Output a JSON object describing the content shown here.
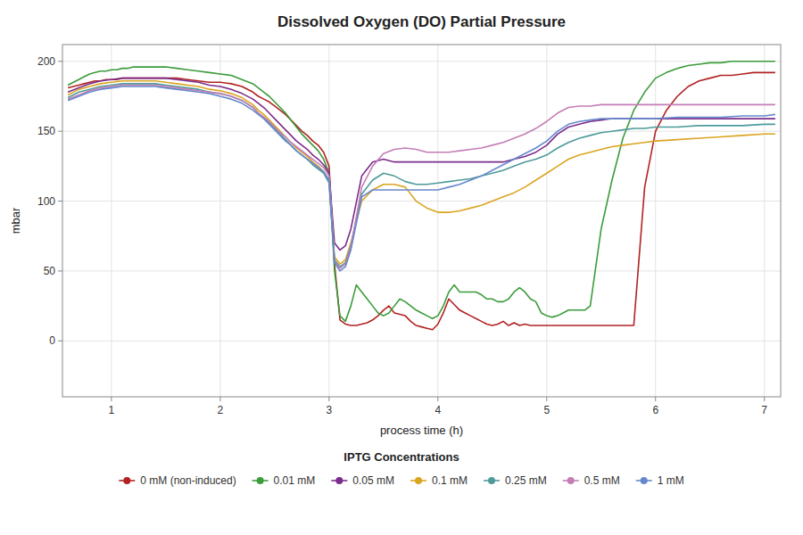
{
  "chart_data": {
    "type": "line",
    "title": "Dissolved Oxygen (DO) Partial Pressure",
    "x_label": "process time (h)",
    "y_label": "mbar",
    "legend_title": "IPTG Concentrations",
    "legend": "bottom",
    "grid": true,
    "xlim": [
      0.55,
      7.15
    ],
    "ylim": [
      -40,
      212
    ],
    "xticks": [
      1,
      2,
      3,
      4,
      5,
      6,
      7
    ],
    "yticks": [
      0,
      50,
      100,
      150,
      200
    ],
    "series": [
      {
        "name": "0 mM (non-induced)",
        "color": "#b22222",
        "x": [
          0.6,
          0.65,
          0.7,
          0.75,
          0.8,
          0.85,
          0.9,
          0.95,
          1.0,
          1.05,
          1.1,
          1.15,
          1.2,
          1.3,
          1.4,
          1.5,
          1.6,
          1.7,
          1.8,
          1.9,
          2.0,
          2.1,
          2.2,
          2.3,
          2.35,
          2.4,
          2.45,
          2.5,
          2.55,
          2.6,
          2.65,
          2.7,
          2.75,
          2.8,
          2.85,
          2.9,
          2.95,
          3.0,
          3.05,
          3.1,
          3.15,
          3.2,
          3.25,
          3.3,
          3.35,
          3.4,
          3.45,
          3.5,
          3.55,
          3.6,
          3.65,
          3.7,
          3.75,
          3.8,
          3.85,
          3.9,
          3.95,
          4.0,
          4.05,
          4.1,
          4.15,
          4.2,
          4.25,
          4.3,
          4.35,
          4.4,
          4.45,
          4.5,
          4.55,
          4.6,
          4.65,
          4.7,
          4.75,
          4.8,
          4.85,
          4.9,
          4.95,
          5.0,
          5.05,
          5.1,
          5.15,
          5.2,
          5.3,
          5.4,
          5.5,
          5.6,
          5.7,
          5.8,
          5.9,
          6.0,
          6.1,
          6.2,
          6.3,
          6.4,
          6.5,
          6.6,
          6.7,
          6.8,
          6.9,
          7.0,
          7.1
        ],
        "values": [
          181,
          182,
          183,
          184,
          185,
          186,
          186,
          187,
          187,
          187,
          188,
          188,
          188,
          188,
          188,
          188,
          188,
          187,
          186,
          185,
          185,
          184,
          182,
          178,
          175,
          173,
          171,
          168,
          165,
          162,
          158,
          154,
          150,
          147,
          143,
          140,
          135,
          125,
          55,
          15,
          12,
          11,
          11,
          12,
          13,
          15,
          18,
          22,
          25,
          20,
          19,
          18,
          14,
          11,
          10,
          9,
          8,
          12,
          20,
          30,
          26,
          22,
          20,
          18,
          16,
          14,
          12,
          11,
          12,
          14,
          11,
          13,
          11,
          12,
          11,
          11,
          11,
          11,
          11,
          11,
          11,
          11,
          11,
          11,
          11,
          11,
          11,
          11,
          110,
          150,
          165,
          175,
          182,
          186,
          188,
          190,
          190,
          191,
          192,
          192,
          192
        ]
      },
      {
        "name": "0.01 mM",
        "color": "#3a9c3a",
        "x": [
          0.6,
          0.65,
          0.7,
          0.75,
          0.8,
          0.85,
          0.9,
          0.95,
          1.0,
          1.05,
          1.1,
          1.15,
          1.2,
          1.3,
          1.4,
          1.5,
          1.6,
          1.7,
          1.8,
          1.9,
          2.0,
          2.1,
          2.2,
          2.3,
          2.35,
          2.4,
          2.45,
          2.5,
          2.55,
          2.6,
          2.65,
          2.7,
          2.75,
          2.8,
          2.85,
          2.9,
          2.95,
          3.0,
          3.05,
          3.1,
          3.15,
          3.2,
          3.25,
          3.3,
          3.35,
          3.4,
          3.45,
          3.5,
          3.55,
          3.6,
          3.65,
          3.7,
          3.75,
          3.8,
          3.85,
          3.9,
          3.95,
          4.0,
          4.05,
          4.1,
          4.15,
          4.2,
          4.25,
          4.3,
          4.35,
          4.4,
          4.45,
          4.5,
          4.55,
          4.6,
          4.65,
          4.7,
          4.75,
          4.8,
          4.85,
          4.9,
          4.95,
          5.0,
          5.05,
          5.1,
          5.15,
          5.2,
          5.25,
          5.3,
          5.35,
          5.4,
          5.5,
          5.6,
          5.7,
          5.8,
          5.9,
          6.0,
          6.1,
          6.2,
          6.3,
          6.4,
          6.5,
          6.6,
          6.7,
          6.8,
          6.9,
          7.0,
          7.1
        ],
        "values": [
          183,
          185,
          187,
          189,
          191,
          192,
          193,
          193,
          194,
          194,
          195,
          195,
          196,
          196,
          196,
          196,
          195,
          194,
          193,
          192,
          191,
          190,
          187,
          184,
          181,
          178,
          175,
          171,
          167,
          163,
          158,
          153,
          148,
          144,
          140,
          136,
          130,
          120,
          50,
          18,
          14,
          25,
          40,
          35,
          30,
          25,
          20,
          18,
          20,
          25,
          30,
          28,
          25,
          22,
          20,
          18,
          16,
          18,
          25,
          35,
          40,
          35,
          35,
          35,
          35,
          33,
          30,
          30,
          28,
          28,
          30,
          35,
          38,
          35,
          30,
          28,
          20,
          18,
          17,
          18,
          20,
          22,
          22,
          22,
          22,
          25,
          80,
          115,
          145,
          165,
          178,
          188,
          192,
          195,
          197,
          198,
          199,
          199,
          200,
          200,
          200,
          200,
          200
        ]
      },
      {
        "name": "0.05 mM",
        "color": "#7B2D8B",
        "x": [
          0.6,
          0.7,
          0.8,
          0.9,
          1.0,
          1.1,
          1.2,
          1.3,
          1.4,
          1.5,
          1.6,
          1.7,
          1.8,
          1.9,
          2.0,
          2.1,
          2.2,
          2.3,
          2.35,
          2.4,
          2.45,
          2.5,
          2.55,
          2.6,
          2.65,
          2.7,
          2.75,
          2.8,
          2.85,
          2.9,
          2.95,
          3.0,
          3.05,
          3.1,
          3.15,
          3.2,
          3.3,
          3.4,
          3.5,
          3.6,
          3.7,
          3.8,
          3.9,
          4.0,
          4.1,
          4.2,
          4.3,
          4.4,
          4.5,
          4.6,
          4.7,
          4.8,
          4.9,
          5.0,
          5.1,
          5.2,
          5.3,
          5.4,
          5.5,
          5.6,
          5.7,
          5.8,
          5.9,
          6.0,
          6.1,
          6.2,
          6.3,
          6.5,
          6.7,
          6.9,
          7.1
        ],
        "values": [
          178,
          181,
          184,
          186,
          187,
          188,
          188,
          188,
          188,
          188,
          187,
          186,
          185,
          183,
          182,
          180,
          177,
          173,
          170,
          167,
          163,
          159,
          155,
          151,
          147,
          143,
          140,
          137,
          133,
          130,
          126,
          120,
          70,
          65,
          68,
          80,
          118,
          128,
          130,
          128,
          128,
          128,
          128,
          128,
          128,
          128,
          128,
          128,
          128,
          128,
          130,
          132,
          135,
          140,
          148,
          153,
          155,
          157,
          158,
          159,
          159,
          159,
          159,
          159,
          159,
          159,
          159,
          159,
          159,
          159,
          159
        ]
      },
      {
        "name": "0.1 mM",
        "color": "#DAA520",
        "x": [
          0.6,
          0.7,
          0.8,
          0.9,
          1.0,
          1.1,
          1.2,
          1.3,
          1.4,
          1.5,
          1.6,
          1.7,
          1.8,
          1.9,
          2.0,
          2.1,
          2.2,
          2.3,
          2.35,
          2.4,
          2.45,
          2.5,
          2.55,
          2.6,
          2.65,
          2.7,
          2.75,
          2.8,
          2.85,
          2.9,
          2.95,
          3.0,
          3.05,
          3.1,
          3.15,
          3.2,
          3.3,
          3.4,
          3.5,
          3.6,
          3.7,
          3.8,
          3.9,
          4.0,
          4.1,
          4.2,
          4.3,
          4.4,
          4.5,
          4.6,
          4.7,
          4.8,
          4.9,
          5.0,
          5.1,
          5.2,
          5.3,
          5.4,
          5.5,
          5.6,
          5.7,
          5.8,
          5.9,
          6.0,
          6.2,
          6.4,
          6.6,
          6.8,
          7.0,
          7.1
        ],
        "values": [
          176,
          180,
          182,
          184,
          185,
          186,
          186,
          186,
          186,
          185,
          184,
          183,
          182,
          180,
          179,
          177,
          174,
          169,
          165,
          162,
          158,
          154,
          150,
          146,
          142,
          138,
          135,
          132,
          128,
          125,
          121,
          115,
          60,
          55,
          58,
          70,
          100,
          108,
          112,
          112,
          110,
          100,
          95,
          92,
          92,
          93,
          95,
          97,
          100,
          103,
          106,
          110,
          115,
          120,
          125,
          130,
          133,
          135,
          137,
          139,
          140,
          141,
          142,
          143,
          144,
          145,
          146,
          147,
          148,
          148
        ]
      },
      {
        "name": "0.25 mM",
        "color": "#4E9A9A",
        "x": [
          0.6,
          0.7,
          0.8,
          0.9,
          1.0,
          1.1,
          1.2,
          1.3,
          1.4,
          1.5,
          1.6,
          1.7,
          1.8,
          1.9,
          2.0,
          2.1,
          2.2,
          2.3,
          2.35,
          2.4,
          2.45,
          2.5,
          2.55,
          2.6,
          2.65,
          2.7,
          2.75,
          2.8,
          2.85,
          2.9,
          2.95,
          3.0,
          3.05,
          3.1,
          3.15,
          3.2,
          3.3,
          3.4,
          3.5,
          3.6,
          3.7,
          3.8,
          3.9,
          4.0,
          4.1,
          4.2,
          4.3,
          4.4,
          4.5,
          4.6,
          4.7,
          4.8,
          4.9,
          5.0,
          5.1,
          5.2,
          5.3,
          5.4,
          5.5,
          5.6,
          5.7,
          5.8,
          5.9,
          6.0,
          6.2,
          6.4,
          6.6,
          6.8,
          7.0,
          7.1
        ],
        "values": [
          174,
          178,
          180,
          182,
          183,
          184,
          184,
          184,
          184,
          183,
          182,
          181,
          180,
          178,
          177,
          175,
          172,
          167,
          163,
          160,
          156,
          152,
          148,
          144,
          140,
          136,
          133,
          130,
          126,
          123,
          120,
          113,
          58,
          53,
          56,
          68,
          105,
          115,
          120,
          118,
          114,
          112,
          112,
          113,
          114,
          115,
          116,
          118,
          120,
          122,
          125,
          128,
          130,
          133,
          138,
          142,
          145,
          147,
          149,
          150,
          151,
          152,
          152,
          153,
          153,
          154,
          154,
          154,
          155,
          155
        ]
      },
      {
        "name": "0.5 mM",
        "color": "#C47DB5",
        "x": [
          0.6,
          0.7,
          0.8,
          0.9,
          1.0,
          1.1,
          1.2,
          1.3,
          1.4,
          1.5,
          1.6,
          1.7,
          1.8,
          1.9,
          2.0,
          2.1,
          2.2,
          2.3,
          2.35,
          2.4,
          2.45,
          2.5,
          2.55,
          2.6,
          2.65,
          2.7,
          2.75,
          2.8,
          2.85,
          2.9,
          2.95,
          3.0,
          3.05,
          3.1,
          3.15,
          3.2,
          3.3,
          3.4,
          3.5,
          3.6,
          3.7,
          3.8,
          3.9,
          4.0,
          4.1,
          4.2,
          4.3,
          4.4,
          4.5,
          4.6,
          4.7,
          4.8,
          4.9,
          5.0,
          5.1,
          5.2,
          5.3,
          5.4,
          5.5,
          5.6,
          5.7,
          5.8,
          5.9,
          6.0,
          6.2,
          6.4,
          6.6,
          6.8,
          7.0,
          7.1
        ],
        "values": [
          173,
          176,
          179,
          181,
          182,
          183,
          183,
          183,
          183,
          182,
          181,
          180,
          179,
          178,
          177,
          175,
          172,
          167,
          163,
          160,
          157,
          153,
          149,
          146,
          142,
          139,
          136,
          133,
          130,
          127,
          124,
          118,
          57,
          52,
          55,
          67,
          110,
          125,
          134,
          137,
          138,
          137,
          135,
          135,
          135,
          136,
          137,
          138,
          140,
          142,
          145,
          148,
          152,
          157,
          163,
          167,
          168,
          168,
          169,
          169,
          169,
          169,
          169,
          169,
          169,
          169,
          169,
          169,
          169,
          169
        ]
      },
      {
        "name": "1 mM",
        "color": "#6688CC",
        "x": [
          0.6,
          0.7,
          0.8,
          0.9,
          1.0,
          1.1,
          1.2,
          1.3,
          1.4,
          1.5,
          1.6,
          1.7,
          1.8,
          1.9,
          2.0,
          2.1,
          2.2,
          2.3,
          2.35,
          2.4,
          2.45,
          2.5,
          2.55,
          2.6,
          2.65,
          2.7,
          2.75,
          2.8,
          2.85,
          2.9,
          2.95,
          3.0,
          3.05,
          3.1,
          3.15,
          3.2,
          3.3,
          3.4,
          3.5,
          3.6,
          3.7,
          3.8,
          3.9,
          4.0,
          4.1,
          4.2,
          4.3,
          4.4,
          4.5,
          4.6,
          4.7,
          4.8,
          4.9,
          5.0,
          5.1,
          5.2,
          5.3,
          5.4,
          5.5,
          5.6,
          5.7,
          5.8,
          5.9,
          6.0,
          6.2,
          6.4,
          6.6,
          6.8,
          7.0,
          7.1
        ],
        "values": [
          172,
          175,
          178,
          180,
          181,
          182,
          182,
          182,
          182,
          181,
          180,
          179,
          178,
          177,
          175,
          173,
          170,
          165,
          162,
          159,
          155,
          151,
          147,
          143,
          140,
          136,
          133,
          130,
          127,
          124,
          121,
          115,
          56,
          50,
          53,
          65,
          103,
          108,
          108,
          108,
          108,
          108,
          108,
          108,
          110,
          112,
          115,
          118,
          122,
          126,
          130,
          134,
          138,
          143,
          150,
          155,
          157,
          158,
          159,
          159,
          159,
          159,
          159,
          159,
          160,
          160,
          160,
          161,
          161,
          162
        ]
      }
    ]
  }
}
